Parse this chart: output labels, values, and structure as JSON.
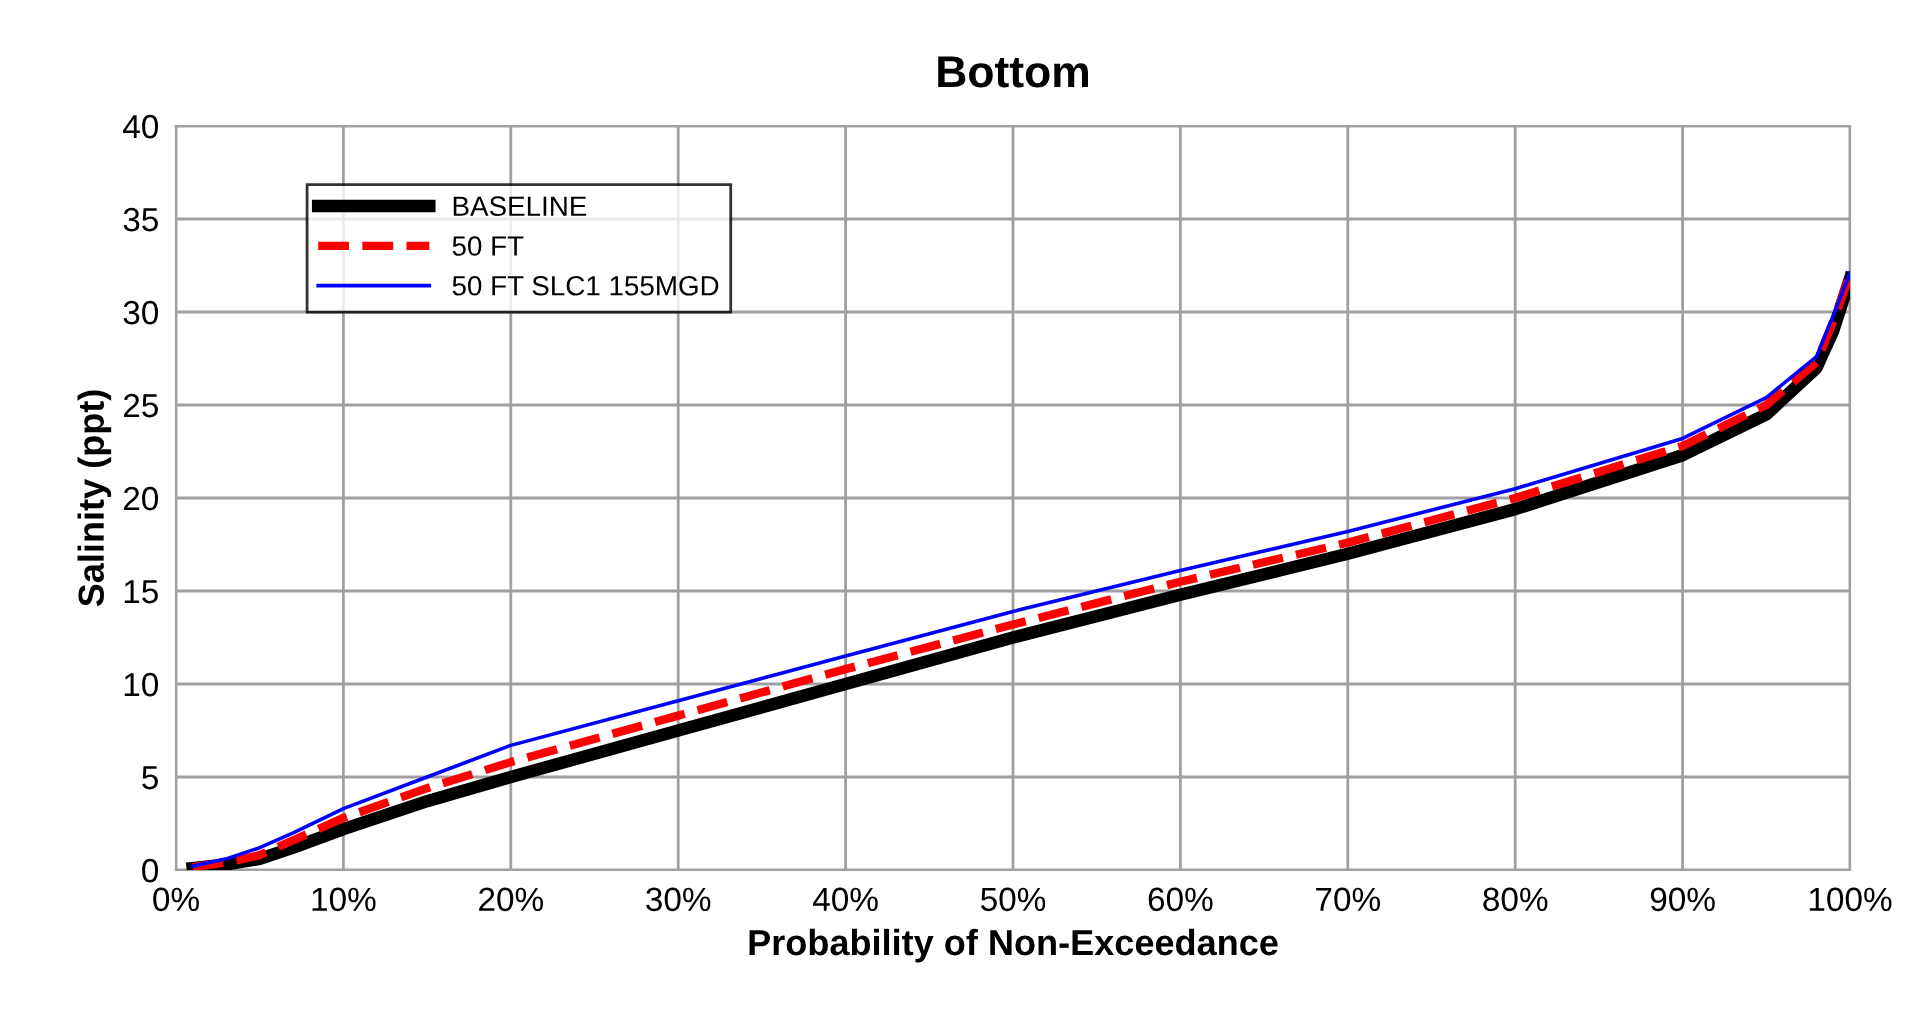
{
  "chart_data": {
    "type": "line",
    "title": "Bottom",
    "xlabel": "Probability of Non-Exceedance",
    "ylabel": "Salinity (ppt)",
    "x": [
      1,
      3,
      5,
      7,
      10,
      15,
      20,
      30,
      40,
      50,
      60,
      70,
      80,
      90,
      95,
      98,
      99,
      100
    ],
    "series": [
      {
        "name": "BASELINE",
        "color": "#000000",
        "line_style": "solid",
        "values": [
          0.1,
          0.3,
          0.6,
          1.2,
          2.2,
          3.7,
          5.0,
          7.5,
          10.0,
          12.5,
          14.8,
          17.0,
          19.4,
          22.3,
          24.5,
          27.0,
          29.0,
          31.8
        ]
      },
      {
        "name": "50 FT",
        "color": "#ff0000",
        "line_style": "dashed",
        "values": [
          0.15,
          0.4,
          0.8,
          1.6,
          2.8,
          4.4,
          5.8,
          8.3,
          10.8,
          13.2,
          15.5,
          17.6,
          20.0,
          22.8,
          25.0,
          27.3,
          29.5,
          32.0
        ]
      },
      {
        "name": "50 FT SLC1 155MGD",
        "color": "#0000ff",
        "line_style": "solid",
        "values": [
          0.2,
          0.6,
          1.2,
          2.0,
          3.3,
          5.0,
          6.7,
          9.1,
          11.5,
          13.9,
          16.1,
          18.2,
          20.5,
          23.2,
          25.4,
          27.6,
          29.8,
          32.1
        ]
      }
    ],
    "xlim": [
      0,
      100
    ],
    "xticks": [
      {
        "value": 0,
        "label": "0%"
      },
      {
        "value": 10,
        "label": "10%"
      },
      {
        "value": 20,
        "label": "20%"
      },
      {
        "value": 30,
        "label": "30%"
      },
      {
        "value": 40,
        "label": "40%"
      },
      {
        "value": 50,
        "label": "50%"
      },
      {
        "value": 60,
        "label": "60%"
      },
      {
        "value": 70,
        "label": "70%"
      },
      {
        "value": 80,
        "label": "80%"
      },
      {
        "value": 90,
        "label": "90%"
      },
      {
        "value": 100,
        "label": "100%"
      }
    ],
    "ylim": [
      0,
      40
    ],
    "yticks": [
      0,
      5,
      10,
      15,
      20,
      25,
      30,
      35,
      40
    ],
    "grid": true,
    "legend": "top left",
    "marker": "none"
  }
}
